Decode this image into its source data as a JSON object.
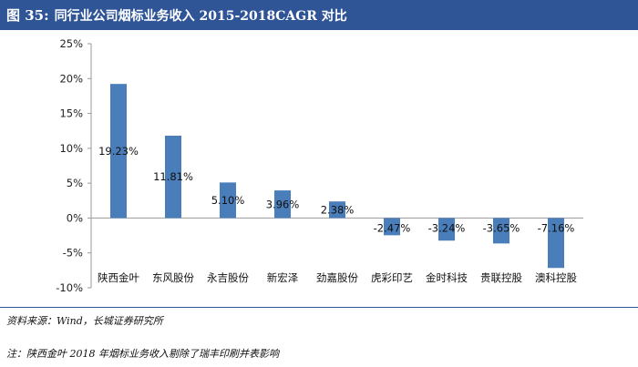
{
  "header": {
    "figure_label": "图 35:",
    "title": "同行业公司烟标业务收入 2015-2018CAGR 对比"
  },
  "colors": {
    "header_bg": "#2f5597",
    "bar": "#4a7ebb",
    "axis": "#999999"
  },
  "chart_data": {
    "type": "bar",
    "title": "",
    "xlabel": "",
    "ylabel": "",
    "categories": [
      "陕西金叶",
      "东风股份",
      "永吉股份",
      "新宏泽",
      "劲嘉股份",
      "虎彩印艺",
      "金时科技",
      "贵联控股",
      "澳科控股"
    ],
    "values": [
      19.23,
      11.81,
      5.1,
      3.96,
      2.38,
      -2.47,
      -3.24,
      -3.65,
      -7.16
    ],
    "data_labels": [
      "19.23%",
      "11.81%",
      "5.10%",
      "3.96%",
      "2.38%",
      "-2.47%",
      "-3.24%",
      "-3.65%",
      "-7.16%"
    ],
    "ylim": [
      -10,
      25
    ],
    "yticks": [
      -10,
      -5,
      0,
      5,
      10,
      15,
      20,
      25
    ],
    "ytick_labels": [
      "-10%",
      "-5%",
      "0%",
      "5%",
      "10%",
      "15%",
      "20%",
      "25%"
    ],
    "grid": false,
    "legend": "none"
  },
  "footer": {
    "source": "资料来源：Wind，长城证券研究所",
    "note": "注：陕西金叶 2018 年烟标业务收入剔除了瑞丰印刷并表影响"
  }
}
